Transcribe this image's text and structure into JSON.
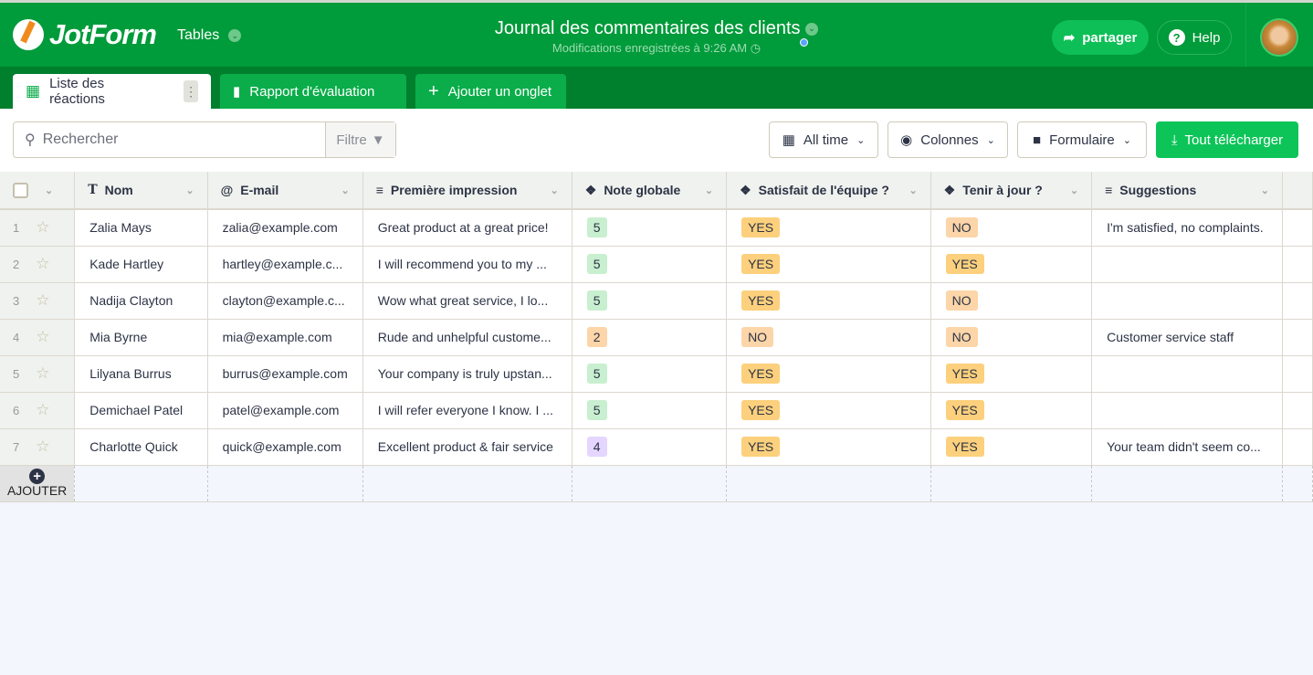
{
  "header": {
    "logo": "JotForm",
    "app": "Tables",
    "title": "Journal des commentaires des clients",
    "saved": "Modifications enregistrées à 9:26 AM",
    "share": "partager",
    "help": "Help"
  },
  "tabs": [
    {
      "label": "Liste des réactions"
    },
    {
      "label": "Rapport d'évaluation"
    },
    {
      "label": "Ajouter un onglet"
    }
  ],
  "toolbar": {
    "search_placeholder": "Rechercher",
    "filter": "Filtre",
    "time": "All time",
    "columns": "Colonnes",
    "form": "Formulaire",
    "download": "Tout télécharger"
  },
  "columns": [
    "Nom",
    "E-mail",
    "Première impression",
    "Note globale",
    "Satisfait de l'équipe ?",
    "Tenir à jour ?",
    "Suggestions"
  ],
  "rows": [
    {
      "n": "1",
      "name": "Zalia Mays",
      "email": "zalia@example.com",
      "impression": "Great product at a great price!",
      "note": "5",
      "satisfied": "YES",
      "update": "NO",
      "suggestion": "I'm satisfied, no complaints."
    },
    {
      "n": "2",
      "name": "Kade Hartley",
      "email": "hartley@example.c...",
      "impression": "I will recommend you to my ...",
      "note": "5",
      "satisfied": "YES",
      "update": "YES",
      "suggestion": ""
    },
    {
      "n": "3",
      "name": "Nadija Clayton",
      "email": "clayton@example.c...",
      "impression": "Wow what great service, I lo...",
      "note": "5",
      "satisfied": "YES",
      "update": "NO",
      "suggestion": ""
    },
    {
      "n": "4",
      "name": "Mia Byrne",
      "email": "mia@example.com",
      "impression": "Rude and unhelpful custome...",
      "note": "2",
      "satisfied": "NO",
      "update": "NO",
      "suggestion": "Customer service staff"
    },
    {
      "n": "5",
      "name": "Lilyana Burrus",
      "email": "burrus@example.com",
      "impression": "Your company is truly upstan...",
      "note": "5",
      "satisfied": "YES",
      "update": "YES",
      "suggestion": ""
    },
    {
      "n": "6",
      "name": "Demichael Patel",
      "email": "patel@example.com",
      "impression": "I will refer everyone I know. I ...",
      "note": "5",
      "satisfied": "YES",
      "update": "YES",
      "suggestion": ""
    },
    {
      "n": "7",
      "name": "Charlotte Quick",
      "email": "quick@example.com",
      "impression": "Excellent product & fair service",
      "note": "4",
      "satisfied": "YES",
      "update": "YES",
      "suggestion": "Your team didn't seem co..."
    }
  ],
  "add_row": "AJOUTER"
}
